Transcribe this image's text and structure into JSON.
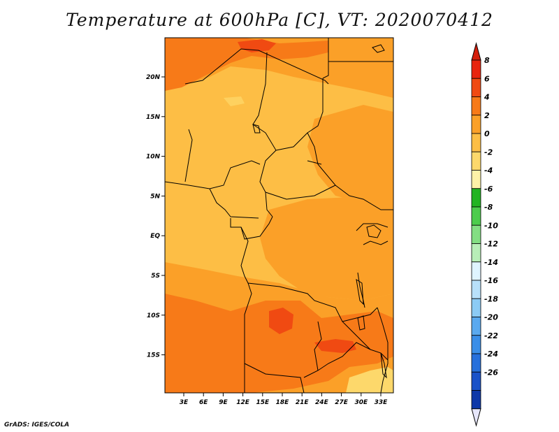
{
  "title": "Temperature at 600hPa [C], VT: 2020070412",
  "credit": "GrADS: IGES/COLA",
  "map": {
    "variable": "Temperature at 600hPa",
    "unit": "C",
    "valid_time": "2020070412",
    "lon_labels": [
      "3E",
      "6E",
      "9E",
      "12E",
      "15E",
      "18E",
      "21E",
      "24E",
      "27E",
      "30E",
      "33E"
    ],
    "lat_labels": [
      "20N",
      "15N",
      "10N",
      "5N",
      "EQ",
      "5S",
      "10S",
      "15S"
    ]
  },
  "colorbar": {
    "labels": [
      "8",
      "6",
      "4",
      "2",
      "0",
      "-2",
      "-4",
      "-6",
      "-8",
      "-10",
      "-12",
      "-14",
      "-16",
      "-18",
      "-20",
      "-22",
      "-24",
      "-26"
    ],
    "colors": [
      "#e8240e",
      "#f04a12",
      "#f77a18",
      "#fba028",
      "#fdbe45",
      "#fdd86b",
      "#fef2a8",
      "#23b423",
      "#4ccc4c",
      "#83de83",
      "#b8eeb8",
      "#dff4ff",
      "#b8e0fa",
      "#8ccbf5",
      "#5aa9ef",
      "#3a8ee8",
      "#2670dc",
      "#1a52c8",
      "#0e38a8",
      "#0c1f7a"
    ],
    "top_cap_color": "#d41e0c",
    "bottom_cap_color": "#e6e6fa"
  },
  "temperature_colors": {
    "light_yellow": "#fef2a8",
    "pale": "#fdd86b",
    "light_orange": "#fdbe45",
    "orange": "#fba028",
    "dark_orange": "#f77a18",
    "red_orange": "#f04a12"
  }
}
